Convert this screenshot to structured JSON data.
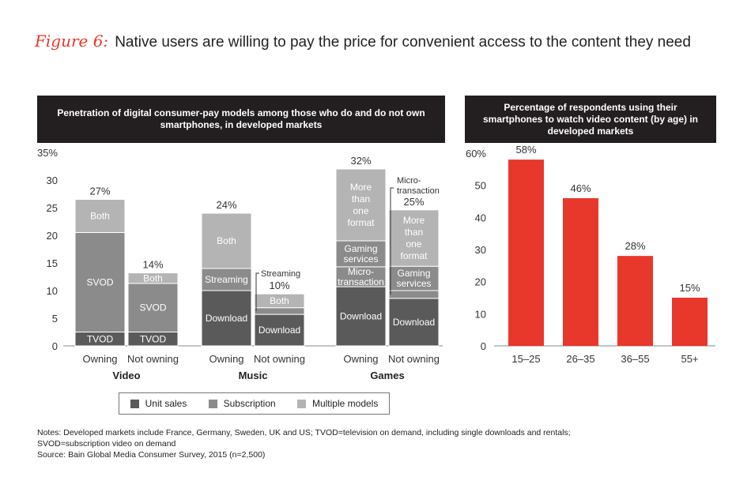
{
  "figure": {
    "label": "Figure 6:",
    "title": "Native users are willing to pay the price for convenient access to the content they need"
  },
  "colors": {
    "unit_sales": "#5a5a5a",
    "subscription": "#8b8b8b",
    "multiple_models": "#b4b4b4",
    "accent": "#e8372b",
    "header_bg": "#231f20"
  },
  "legend": {
    "unit_sales": "Unit sales",
    "subscription": "Subscription",
    "multiple_models": "Multiple models"
  },
  "notes": {
    "line1": "Notes: Developed markets include France, Germany, Sweden, UK and US; TVOD=television on demand, including single downloads and rentals;",
    "line2": "SVOD=subscription video on demand",
    "line3": "Source: Bain Global Media Consumer Survey, 2015 (n=2,500)"
  },
  "chart_data": [
    {
      "type": "bar",
      "stacked": true,
      "title": "Penetration of digital consumer-pay models among those who do and do not own smartphones, in developed markets",
      "ylim": [
        0,
        35
      ],
      "yticks": [
        0,
        5,
        10,
        15,
        20,
        25,
        30,
        35
      ],
      "ytick_labels": [
        "0",
        "5",
        "10",
        "15",
        "20",
        "25",
        "30",
        "35%"
      ],
      "groups": [
        {
          "name": "Video",
          "bars": [
            {
              "label": "Owning",
              "total_label": "27%",
              "segments": [
                {
                  "name": "TVOD",
                  "model": "unit_sales",
                  "value": 2.5
                },
                {
                  "name": "SVOD",
                  "model": "subscription",
                  "value": 18
                },
                {
                  "name": "Both",
                  "model": "multiple_models",
                  "value": 6
                }
              ]
            },
            {
              "label": "Not owning",
              "total_label": "14%",
              "segments": [
                {
                  "name": "TVOD",
                  "model": "unit_sales",
                  "value": 2.5
                },
                {
                  "name": "SVOD",
                  "model": "subscription",
                  "value": 8.8
                },
                {
                  "name": "Both",
                  "model": "multiple_models",
                  "value": 1.9
                }
              ]
            }
          ]
        },
        {
          "name": "Music",
          "bars": [
            {
              "label": "Owning",
              "total_label": "24%",
              "segments": [
                {
                  "name": "Download",
                  "model": "unit_sales",
                  "value": 10
                },
                {
                  "name": "Streaming",
                  "model": "subscription",
                  "value": 4
                },
                {
                  "name": "Both",
                  "model": "multiple_models",
                  "value": 10
                }
              ]
            },
            {
              "label": "Not owning",
              "total_label": "10%",
              "segments": [
                {
                  "name": "Download",
                  "model": "unit_sales",
                  "value": 5.7
                },
                {
                  "name": "",
                  "model": "subscription",
                  "value": 1.2
                },
                {
                  "name": "Both",
                  "model": "multiple_models",
                  "value": 2.5
                }
              ]
            }
          ]
        },
        {
          "name": "Games",
          "bars": [
            {
              "label": "Owning",
              "total_label": "32%",
              "segments": [
                {
                  "name": "Download",
                  "model": "unit_sales",
                  "value": 10.7
                },
                {
                  "name": "Micro-transaction",
                  "model": "subscription",
                  "value": 3.6
                },
                {
                  "name": "Gaming services",
                  "model": "subscription",
                  "value": 4.7
                },
                {
                  "name": "More than one format",
                  "model": "multiple_models",
                  "value": 13
                }
              ]
            },
            {
              "label": "Not owning",
              "total_label": "25%",
              "segments": [
                {
                  "name": "Download",
                  "model": "unit_sales",
                  "value": 8.6
                },
                {
                  "name": "",
                  "model": "subscription",
                  "value": 1.4
                },
                {
                  "name": "Gaming services",
                  "model": "subscription",
                  "value": 4.4
                },
                {
                  "name": "More than one format",
                  "model": "multiple_models",
                  "value": 10.2
                }
              ]
            }
          ]
        }
      ],
      "annotations": {
        "music_streaming_callout": "Streaming",
        "games_micro_callout": "Micro-transaction"
      }
    },
    {
      "type": "bar",
      "title": "Percentage of respondents using their smartphones to watch video content (by age) in developed markets",
      "categories": [
        "15–25",
        "26–35",
        "36–55",
        "55+"
      ],
      "values": [
        58,
        46,
        28,
        15
      ],
      "data_labels": [
        "58%",
        "46%",
        "28%",
        "15%"
      ],
      "ylim": [
        0,
        60
      ],
      "yticks": [
        0,
        10,
        20,
        30,
        40,
        50,
        60
      ],
      "ytick_labels": [
        "0",
        "10",
        "20",
        "30",
        "40",
        "50",
        "60%"
      ]
    }
  ]
}
